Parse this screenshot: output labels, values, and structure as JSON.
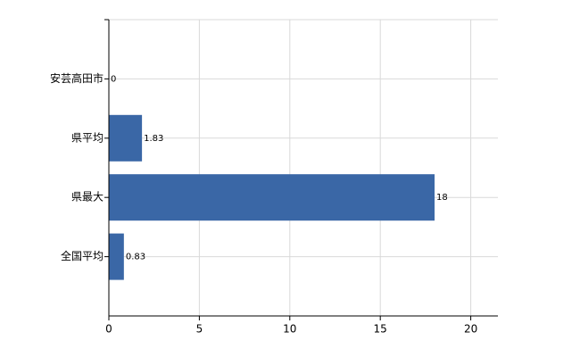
{
  "chart_data": {
    "type": "bar",
    "orientation": "horizontal",
    "categories": [
      "安芸高田市",
      "県平均",
      "県最大",
      "全国平均"
    ],
    "values": [
      0,
      1.83,
      18,
      0.83
    ],
    "color": "#3a67a6",
    "xlim": [
      0,
      21.5
    ],
    "xticks": [
      0,
      5,
      10,
      15,
      20
    ],
    "grid": true
  }
}
